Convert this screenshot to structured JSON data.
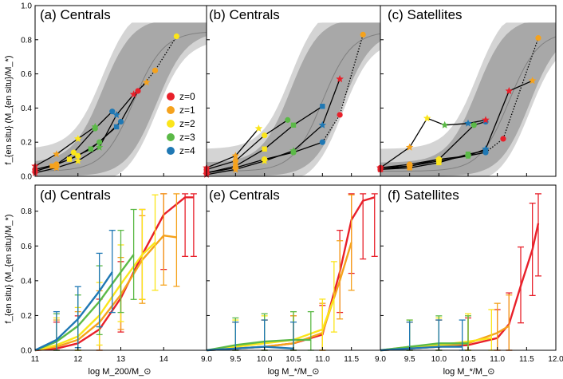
{
  "colors": {
    "z0": "#e8202a",
    "z1": "#f5a21d",
    "z2": "#fbe51a",
    "z3": "#5bb947",
    "z4": "#1f78b4",
    "band_outer": "#d4d4d4",
    "band_inner": "#a8a8a8",
    "median": "#808080",
    "black": "#000000"
  },
  "y_axis_label_top": "f_{en situ} (M_{en situ}/M_*)",
  "y_axis_label_bottom": "f_{en situ} (M_{en situ}/M_*)",
  "legend": [
    {
      "label": "z=0",
      "color": "#e8202a"
    },
    {
      "label": "z=1",
      "color": "#f5a21d"
    },
    {
      "label": "z=2",
      "color": "#fbe51a"
    },
    {
      "label": "z=3",
      "color": "#5bb947"
    },
    {
      "label": "z=4",
      "color": "#1f78b4"
    }
  ],
  "chart_data": [
    {
      "type": "line",
      "panel": "a",
      "title": "(a) Centrals",
      "xlim": [
        11,
        15
      ],
      "ylim": [
        0,
        1.0
      ],
      "yticks": [
        "0.0",
        "0.2",
        "0.4",
        "0.6",
        "0.8",
        "1.0"
      ],
      "xlabel": "",
      "tracks": [
        {
          "x": [
            11.0,
            11.5,
            12.0,
            12.5,
            13.0,
            13.4,
            13.8,
            14.3
          ],
          "y": [
            0.04,
            0.07,
            0.12,
            0.2,
            0.32,
            0.5,
            0.62,
            0.82
          ],
          "dotted_from": 13.8
        },
        {
          "x": [
            11.0,
            11.5,
            12.0,
            12.5,
            12.9,
            13.3,
            13.6
          ],
          "y": [
            0.02,
            0.05,
            0.09,
            0.17,
            0.36,
            0.48,
            0.55
          ]
        },
        {
          "x": [
            11.0,
            11.4,
            11.8,
            12.3,
            12.9
          ],
          "y": [
            0.03,
            0.06,
            0.1,
            0.16,
            0.29
          ]
        },
        {
          "x": [
            11.0,
            11.5,
            11.9,
            12.4,
            12.8
          ],
          "y": [
            0.04,
            0.07,
            0.14,
            0.28,
            0.38
          ]
        },
        {
          "x": [
            11.0,
            11.5,
            12.0,
            12.4
          ],
          "y": [
            0.06,
            0.13,
            0.22,
            0.29
          ]
        }
      ]
    },
    {
      "type": "line",
      "panel": "b",
      "title": "(b) Centrals",
      "xlim": [
        9.0,
        12.0
      ],
      "ylim": [
        0,
        1.0
      ],
      "yticks": [],
      "xlabel": "",
      "tracks": [
        {
          "x": [
            9.0,
            9.5,
            10.0,
            10.5,
            11.0,
            11.3,
            11.7
          ],
          "y": [
            0.02,
            0.05,
            0.1,
            0.14,
            0.2,
            0.36,
            0.83
          ],
          "dotted_from": 11.3
        },
        {
          "x": [
            9.0,
            9.5,
            10.0,
            10.5,
            11.0,
            11.3
          ],
          "y": [
            0.01,
            0.04,
            0.09,
            0.15,
            0.3,
            0.57
          ]
        },
        {
          "x": [
            9.0,
            9.5,
            10.0,
            10.5,
            11.0
          ],
          "y": [
            0.02,
            0.06,
            0.16,
            0.3,
            0.41
          ]
        },
        {
          "x": [
            9.0,
            9.5,
            10.0,
            10.4
          ],
          "y": [
            0.04,
            0.09,
            0.24,
            0.33
          ]
        },
        {
          "x": [
            9.0,
            9.5,
            9.9
          ],
          "y": [
            0.05,
            0.12,
            0.28
          ]
        }
      ]
    },
    {
      "type": "line",
      "panel": "c",
      "title": "(c) Satellites",
      "xlim": [
        9.0,
        12.0
      ],
      "ylim": [
        0,
        1.0
      ],
      "yticks": [],
      "xlabel": "",
      "tracks": [
        {
          "x": [
            9.0,
            9.5,
            10.0,
            10.5,
            10.8,
            11.1,
            11.7
          ],
          "y": [
            0.04,
            0.06,
            0.09,
            0.12,
            0.14,
            0.22,
            0.81
          ],
          "dotted_from": 11.1
        },
        {
          "x": [
            9.0,
            9.5,
            10.0,
            10.5,
            10.8,
            11.2,
            11.6
          ],
          "y": [
            0.05,
            0.06,
            0.1,
            0.12,
            0.16,
            0.5,
            0.56
          ]
        },
        {
          "x": [
            9.0,
            9.5,
            10.0,
            10.5,
            10.8
          ],
          "y": [
            0.04,
            0.05,
            0.08,
            0.13,
            0.15
          ]
        },
        {
          "x": [
            9.0,
            9.5,
            10.0,
            10.6,
            10.8
          ],
          "y": [
            0.05,
            0.07,
            0.1,
            0.3,
            0.32
          ]
        },
        {
          "x": [
            9.0,
            9.5,
            9.8,
            10.1,
            10.5,
            10.8
          ],
          "y": [
            0.05,
            0.17,
            0.34,
            0.3,
            0.31,
            0.33
          ]
        }
      ]
    },
    {
      "type": "line",
      "panel": "d",
      "title": "(d) Centrals",
      "xlim": [
        11,
        15
      ],
      "ylim": [
        0,
        0.95
      ],
      "yticks": [
        "0.0",
        "0.2",
        "0.4",
        "0.6",
        "0.8"
      ],
      "xlabel": "log M_200/M_⊙",
      "xticks": [
        "11",
        "12",
        "13",
        "14"
      ],
      "series": [
        {
          "name": "z=0",
          "x": [
            11.0,
            11.5,
            12.0,
            12.5,
            13.0,
            13.5,
            14.0,
            14.5,
            14.7
          ],
          "y": [
            0.0,
            0.01,
            0.04,
            0.12,
            0.3,
            0.55,
            0.78,
            0.88,
            0.88
          ]
        },
        {
          "name": "z=1",
          "x": [
            11.0,
            11.5,
            12.0,
            12.5,
            13.0,
            13.5,
            14.0,
            14.3
          ],
          "y": [
            0.0,
            0.02,
            0.06,
            0.16,
            0.32,
            0.52,
            0.66,
            0.65
          ]
        },
        {
          "name": "z=2",
          "x": [
            11.0,
            11.5,
            12.0,
            12.5,
            13.0,
            13.5,
            13.8
          ],
          "y": [
            0.0,
            0.03,
            0.08,
            0.2,
            0.38,
            0.55,
            0.62
          ]
        },
        {
          "name": "z=3",
          "x": [
            11.0,
            11.5,
            12.0,
            12.5,
            13.0,
            13.3
          ],
          "y": [
            0.0,
            0.05,
            0.14,
            0.28,
            0.45,
            0.55
          ]
        },
        {
          "name": "z=4",
          "x": [
            11.0,
            11.5,
            12.0,
            12.5,
            12.8
          ],
          "y": [
            0.0,
            0.06,
            0.18,
            0.34,
            0.45
          ]
        }
      ]
    },
    {
      "type": "line",
      "panel": "e",
      "title": "(e) Centrals",
      "xlim": [
        9.0,
        12.0
      ],
      "ylim": [
        0,
        0.95
      ],
      "yticks": [],
      "xlabel": "log M_*/M_⊙",
      "xticks": [
        "9.0",
        "9.5",
        "10.0",
        "10.5",
        "11.0",
        "11.5"
      ],
      "series": [
        {
          "name": "z=0",
          "x": [
            9.0,
            9.5,
            10.0,
            10.5,
            11.0,
            11.3,
            11.5,
            11.7,
            11.9
          ],
          "y": [
            0.0,
            0.01,
            0.02,
            0.04,
            0.09,
            0.45,
            0.75,
            0.86,
            0.88
          ]
        },
        {
          "name": "z=1",
          "x": [
            9.0,
            9.5,
            10.0,
            10.5,
            11.0,
            11.3,
            11.5
          ],
          "y": [
            0.0,
            0.01,
            0.02,
            0.04,
            0.1,
            0.4,
            0.62
          ]
        },
        {
          "name": "z=2",
          "x": [
            9.0,
            9.5,
            10.0,
            10.5,
            11.0,
            11.2
          ],
          "y": [
            0.0,
            0.02,
            0.04,
            0.06,
            0.12,
            0.3
          ]
        },
        {
          "name": "z=3",
          "x": [
            9.0,
            9.5,
            10.0,
            10.5,
            10.8
          ],
          "y": [
            0.0,
            0.03,
            0.05,
            0.06,
            0.06
          ]
        },
        {
          "name": "z=4",
          "x": [
            9.0,
            9.5,
            10.0,
            10.5
          ],
          "y": [
            0.0,
            0.01,
            0.02,
            0.01
          ]
        }
      ]
    },
    {
      "type": "line",
      "panel": "f",
      "title": "(f) Satellites",
      "xlim": [
        9.0,
        12.0
      ],
      "ylim": [
        0,
        0.95
      ],
      "yticks": [],
      "xlabel": "log M_*/M_⊙",
      "xticks": [
        "9.0",
        "9.5",
        "10.0",
        "10.5",
        "11.0",
        "11.5",
        "12.0"
      ],
      "series": [
        {
          "name": "z=0",
          "x": [
            9.0,
            9.5,
            10.0,
            10.5,
            11.0,
            11.2,
            11.4,
            11.6,
            11.7
          ],
          "y": [
            0.0,
            0.01,
            0.02,
            0.03,
            0.07,
            0.15,
            0.37,
            0.58,
            0.73
          ]
        },
        {
          "name": "z=1",
          "x": [
            9.0,
            9.5,
            10.0,
            10.5,
            11.0,
            11.2
          ],
          "y": [
            0.0,
            0.01,
            0.02,
            0.04,
            0.1,
            0.14
          ]
        },
        {
          "name": "z=2",
          "x": [
            9.0,
            9.5,
            10.0,
            10.5,
            10.9
          ],
          "y": [
            0.0,
            0.02,
            0.03,
            0.05,
            0.07
          ]
        },
        {
          "name": "z=3",
          "x": [
            9.0,
            9.5,
            10.0,
            10.5
          ],
          "y": [
            0.0,
            0.02,
            0.04,
            0.04
          ]
        },
        {
          "name": "z=4",
          "x": [
            9.0,
            9.5,
            10.0,
            10.4
          ],
          "y": [
            0.0,
            0.01,
            0.02,
            0.02
          ]
        }
      ]
    }
  ]
}
